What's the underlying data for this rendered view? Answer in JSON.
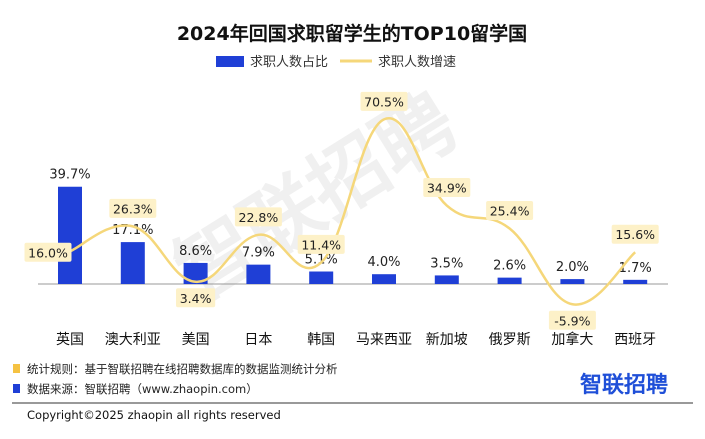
{
  "chart_data": {
    "type": "bar",
    "title": "2024年回国求职留学生的TOP10留学国",
    "categories": [
      "英国",
      "澳大利亚",
      "美国",
      "日本",
      "韩国",
      "马来西亚",
      "新加坡",
      "俄罗斯",
      "加拿大",
      "西班牙"
    ],
    "series": [
      {
        "name": "求职人数占比",
        "type": "bar",
        "values": [
          39.7,
          17.1,
          8.6,
          7.9,
          5.1,
          4.0,
          3.5,
          2.6,
          2.0,
          1.7
        ],
        "color": "#1f3fd6"
      },
      {
        "name": "求职人数增速",
        "type": "line",
        "values": [
          16.0,
          26.3,
          3.4,
          22.8,
          11.4,
          70.5,
          34.9,
          25.4,
          -5.9,
          15.6
        ],
        "color": "#f5d77a"
      }
    ],
    "value_suffix": "%",
    "legend_position": "top",
    "grid": false
  },
  "watermark": "智联招聘",
  "footer": {
    "note1": "统计规则：基于智联招聘在线招聘数据库的数据监测统计分析",
    "note2": "数据来源：智联招聘（www.zhaopin.com）",
    "note1_color": "#f5c242",
    "note2_color": "#1f3fd6",
    "copyright": "Copyright©2025 zhaopin all rights reserved",
    "logo_text": "智联招聘",
    "logo_color": "#1f4fd8"
  }
}
